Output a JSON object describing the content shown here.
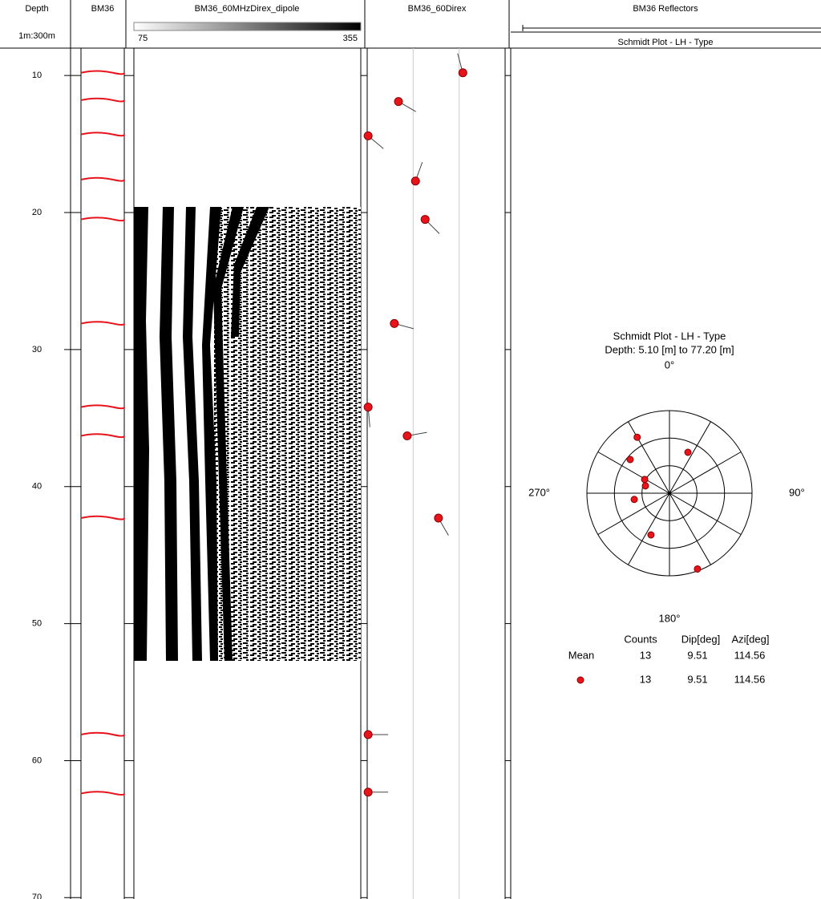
{
  "header": {
    "depth": "Depth",
    "scale": "1m:300m",
    "track1": "BM36",
    "track2": "BM36_60MHzDirex_dipole",
    "colorbar": {
      "min": 75,
      "max": 355
    },
    "track3": "BM36_60Direx",
    "track4": "BM36 Reflectors",
    "track4_sub": "Schmidt Plot - LH - Type"
  },
  "depth_axis": {
    "ylim": [
      8,
      70.1
    ],
    "yticks": [
      10,
      20,
      30,
      40,
      50,
      60,
      70
    ]
  },
  "reflectors": {
    "color": "#e8141c",
    "depths": [
      9.8,
      11.8,
      14.3,
      17.6,
      20.5,
      28.1,
      34.2,
      36.3,
      42.3,
      58.1,
      62.4
    ]
  },
  "tadpoles": {
    "color": "#e8141c",
    "xlim": [
      0,
      30
    ],
    "grid": [
      10,
      20
    ],
    "depth": [
      9.8,
      11.9,
      14.4,
      17.7,
      20.5,
      28.1,
      34.2,
      36.3,
      42.3,
      58.1,
      62.3
    ],
    "dip": [
      20.8,
      6.8,
      0.2,
      10.5,
      12.6,
      5.9,
      0.2,
      8.7,
      15.5,
      0.2,
      0.2
    ],
    "azimuth": [
      345,
      120,
      130,
      20,
      135,
      105,
      175,
      80,
      150,
      90,
      90
    ]
  },
  "schmidt": {
    "title": "Schmidt Plot - LH - Type",
    "depth_range": "Depth: 5.10 [m] to 77.20 [m]",
    "labels": [
      "0°",
      "90°",
      "180°",
      "270°"
    ],
    "rlim": [
      0,
      90
    ],
    "pole_dip": [
      70.4,
      56.4,
      30.9,
      27.4,
      39,
      49.7,
      88,
      48.9
    ],
    "pole_azimuth": [
      330,
      310.6,
      299,
      287,
      260,
      203.9,
      159.7,
      24.3
    ],
    "stats": {
      "columns": [
        "Counts",
        "Dip[deg]",
        "Azi[deg]"
      ],
      "mean_label": "Mean",
      "mean": [
        13,
        9.51,
        114.56
      ],
      "set": [
        13,
        9.51,
        114.56
      ]
    }
  }
}
